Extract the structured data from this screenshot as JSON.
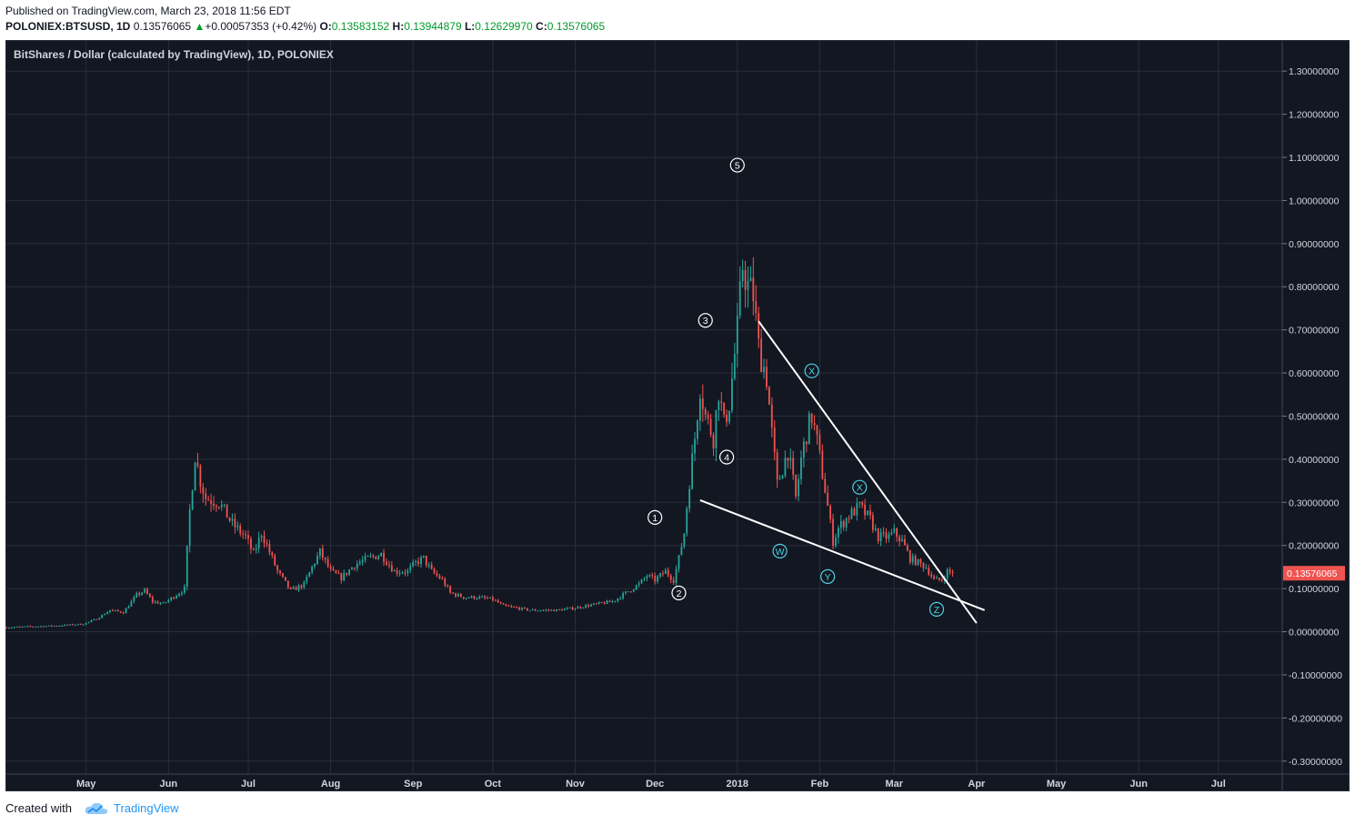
{
  "header": {
    "published": "Published on TradingView.com, March 23, 2018 11:56 EDT",
    "symbol": "POLONIEX:BTSUSD, 1D",
    "last": "0.13576065",
    "change_arrow": "▲",
    "change": "+0.00057353 (+0.42%)",
    "o_label": "O:",
    "o_value": "0.13583152",
    "h_label": "H:",
    "h_value": "0.13944879",
    "l_label": "L:",
    "l_value": "0.12629970",
    "c_label": "C:",
    "c_value": "0.13576065"
  },
  "chart_title": "BitShares / Dollar (calculated by TradingView), 1D, POLONIEX",
  "footer": {
    "created_with": "Created with",
    "brand": "TradingView"
  },
  "colors": {
    "background": "#131722",
    "up": "#26a69a",
    "down": "#ef5350",
    "grid": "#2a2e39",
    "wave_white": "#ffffff",
    "wave_cyan": "#4dd0e1",
    "price_badge": "#ef5350"
  },
  "chart_data": {
    "type": "candlestick",
    "title": "BitShares / Dollar (calculated by TradingView), 1D, POLONIEX",
    "y_ticks": [
      "1.30000000",
      "1.20000000",
      "1.10000000",
      "1.00000000",
      "0.90000000",
      "0.80000000",
      "0.70000000",
      "0.60000000",
      "0.50000000",
      "0.40000000",
      "0.30000000",
      "0.20000000",
      "0.10000000",
      "0.00000000",
      "-0.10000000",
      "-0.20000000",
      "-0.30000000"
    ],
    "y_tick_values": [
      1.3,
      1.2,
      1.1,
      1.0,
      0.9,
      0.8,
      0.7,
      0.6,
      0.5,
      0.4,
      0.3,
      0.2,
      0.1,
      0.0,
      -0.1,
      -0.2,
      -0.3
    ],
    "ylim": [
      -0.33,
      1.37
    ],
    "xlim": [
      "2017-04-01",
      "2018-07-25"
    ],
    "x_ticks": [
      {
        "label": "May",
        "date": "2017-05-01"
      },
      {
        "label": "Jun",
        "date": "2017-06-01"
      },
      {
        "label": "Jul",
        "date": "2017-07-01"
      },
      {
        "label": "Aug",
        "date": "2017-08-01"
      },
      {
        "label": "Sep",
        "date": "2017-09-01"
      },
      {
        "label": "Oct",
        "date": "2017-10-01"
      },
      {
        "label": "Nov",
        "date": "2017-11-01"
      },
      {
        "label": "Dec",
        "date": "2017-12-01"
      },
      {
        "label": "2018",
        "date": "2018-01-01",
        "bold": true
      },
      {
        "label": "Feb",
        "date": "2018-02-01"
      },
      {
        "label": "Mar",
        "date": "2018-03-01"
      },
      {
        "label": "Apr",
        "date": "2018-04-01"
      },
      {
        "label": "May",
        "date": "2018-05-01"
      },
      {
        "label": "Jun",
        "date": "2018-06-01"
      },
      {
        "label": "Jul",
        "date": "2018-07-01"
      }
    ],
    "last_price": {
      "value": 0.13576065,
      "label": "0.13576065"
    },
    "price_path": [
      [
        "2017-04-01",
        0.01
      ],
      [
        "2017-04-20",
        0.014
      ],
      [
        "2017-04-30",
        0.018
      ],
      [
        "2017-05-05",
        0.03
      ],
      [
        "2017-05-10",
        0.05
      ],
      [
        "2017-05-15",
        0.045
      ],
      [
        "2017-05-20",
        0.085
      ],
      [
        "2017-05-23",
        0.095
      ],
      [
        "2017-05-26",
        0.07
      ],
      [
        "2017-05-30",
        0.065
      ],
      [
        "2017-06-05",
        0.09
      ],
      [
        "2017-06-07",
        0.1
      ],
      [
        "2017-06-09",
        0.28
      ],
      [
        "2017-06-11",
        0.41
      ],
      [
        "2017-06-13",
        0.35
      ],
      [
        "2017-06-15",
        0.31
      ],
      [
        "2017-06-20",
        0.3
      ],
      [
        "2017-06-25",
        0.25
      ],
      [
        "2017-06-30",
        0.22
      ],
      [
        "2017-07-03",
        0.18
      ],
      [
        "2017-07-06",
        0.23
      ],
      [
        "2017-07-08",
        0.2
      ],
      [
        "2017-07-12",
        0.14
      ],
      [
        "2017-07-17",
        0.095
      ],
      [
        "2017-07-22",
        0.11
      ],
      [
        "2017-07-25",
        0.15
      ],
      [
        "2017-07-28",
        0.185
      ],
      [
        "2017-08-01",
        0.14
      ],
      [
        "2017-08-05",
        0.125
      ],
      [
        "2017-08-10",
        0.155
      ],
      [
        "2017-08-15",
        0.17
      ],
      [
        "2017-08-20",
        0.18
      ],
      [
        "2017-08-25",
        0.14
      ],
      [
        "2017-08-30",
        0.14
      ],
      [
        "2017-09-02",
        0.16
      ],
      [
        "2017-09-05",
        0.17
      ],
      [
        "2017-09-08",
        0.14
      ],
      [
        "2017-09-12",
        0.12
      ],
      [
        "2017-09-15",
        0.09
      ],
      [
        "2017-09-20",
        0.08
      ],
      [
        "2017-09-25",
        0.08
      ],
      [
        "2017-10-01",
        0.075
      ],
      [
        "2017-10-05",
        0.06
      ],
      [
        "2017-10-10",
        0.055
      ],
      [
        "2017-10-15",
        0.05
      ],
      [
        "2017-10-20",
        0.05
      ],
      [
        "2017-10-25",
        0.05
      ],
      [
        "2017-11-01",
        0.055
      ],
      [
        "2017-11-05",
        0.06
      ],
      [
        "2017-11-10",
        0.065
      ],
      [
        "2017-11-15",
        0.07
      ],
      [
        "2017-11-20",
        0.09
      ],
      [
        "2017-11-25",
        0.11
      ],
      [
        "2017-11-28",
        0.13
      ],
      [
        "2017-12-01",
        0.12
      ],
      [
        "2017-12-05",
        0.14
      ],
      [
        "2017-12-08",
        0.12
      ],
      [
        "2017-12-10",
        0.17
      ],
      [
        "2017-12-12",
        0.23
      ],
      [
        "2017-12-14",
        0.35
      ],
      [
        "2017-12-16",
        0.45
      ],
      [
        "2017-12-18",
        0.57
      ],
      [
        "2017-12-20",
        0.5
      ],
      [
        "2017-12-23",
        0.45
      ],
      [
        "2017-12-25",
        0.56
      ],
      [
        "2017-12-27",
        0.48
      ],
      [
        "2017-12-29",
        0.53
      ],
      [
        "2018-01-01",
        0.7
      ],
      [
        "2018-01-03",
        0.85
      ],
      [
        "2018-01-05",
        0.8
      ],
      [
        "2018-01-07",
        0.78
      ],
      [
        "2018-01-09",
        0.66
      ],
      [
        "2018-01-12",
        0.59
      ],
      [
        "2018-01-14",
        0.46
      ],
      [
        "2018-01-16",
        0.34
      ],
      [
        "2018-01-18",
        0.38
      ],
      [
        "2018-01-20",
        0.42
      ],
      [
        "2018-01-23",
        0.31
      ],
      [
        "2018-01-25",
        0.4
      ],
      [
        "2018-01-27",
        0.46
      ],
      [
        "2018-01-29",
        0.5
      ],
      [
        "2018-01-31",
        0.44
      ],
      [
        "2018-02-03",
        0.33
      ],
      [
        "2018-02-06",
        0.21
      ],
      [
        "2018-02-08",
        0.24
      ],
      [
        "2018-02-12",
        0.27
      ],
      [
        "2018-02-16",
        0.29
      ],
      [
        "2018-02-20",
        0.26
      ],
      [
        "2018-02-23",
        0.22
      ],
      [
        "2018-02-27",
        0.22
      ],
      [
        "2018-03-01",
        0.23
      ],
      [
        "2018-03-04",
        0.21
      ],
      [
        "2018-03-07",
        0.17
      ],
      [
        "2018-03-10",
        0.16
      ],
      [
        "2018-03-13",
        0.15
      ],
      [
        "2018-03-16",
        0.12
      ],
      [
        "2018-03-19",
        0.12
      ],
      [
        "2018-03-21",
        0.14
      ],
      [
        "2018-03-23",
        0.1357
      ]
    ],
    "trendlines": [
      {
        "from": [
          "2018-01-09",
          0.72
        ],
        "to": [
          "2018-04-01",
          0.02
        ]
      },
      {
        "from": [
          "2017-12-18",
          0.305
        ],
        "to": [
          "2018-04-04",
          0.05
        ]
      }
    ],
    "annotations": [
      {
        "label": "1",
        "date": "2017-12-01",
        "value": 0.265,
        "color": "white"
      },
      {
        "label": "2",
        "date": "2017-12-10",
        "value": 0.09,
        "color": "white"
      },
      {
        "label": "3",
        "date": "2017-12-20",
        "value": 0.722,
        "color": "white"
      },
      {
        "label": "4",
        "date": "2017-12-28",
        "value": 0.405,
        "color": "white"
      },
      {
        "label": "5",
        "date": "2018-01-01",
        "value": 1.082,
        "color": "white"
      },
      {
        "label": "W",
        "date": "2018-01-17",
        "value": 0.187,
        "color": "cyan"
      },
      {
        "label": "X",
        "date": "2018-01-29",
        "value": 0.605,
        "color": "cyan"
      },
      {
        "label": "Y",
        "date": "2018-02-04",
        "value": 0.128,
        "color": "cyan"
      },
      {
        "label": "X",
        "date": "2018-02-16",
        "value": 0.335,
        "color": "cyan"
      },
      {
        "label": "Z",
        "date": "2018-03-17",
        "value": 0.052,
        "color": "cyan"
      }
    ]
  }
}
